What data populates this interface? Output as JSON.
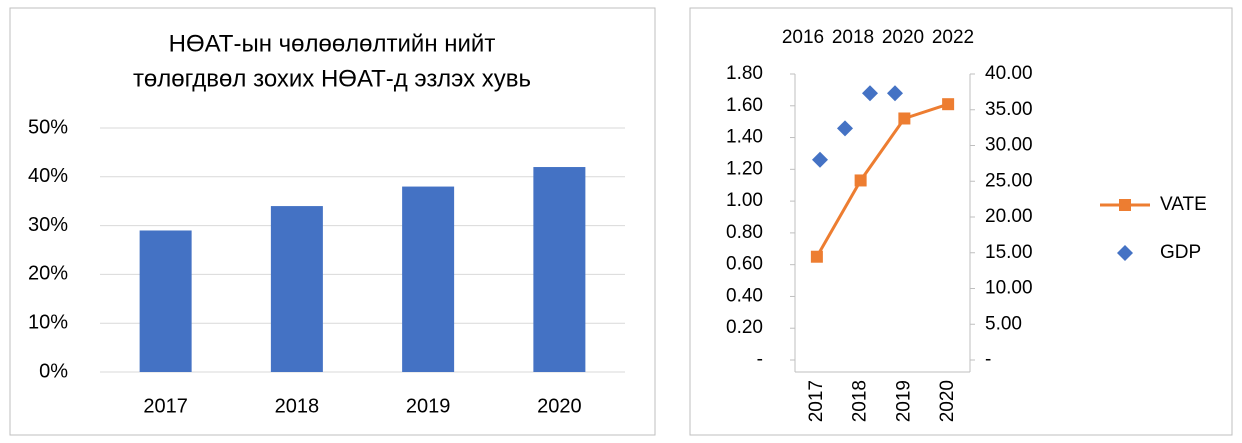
{
  "chart_data": [
    {
      "type": "bar",
      "title": [
        "НӨАТ-ын чөлөөлөлтийн нийт",
        "төлөгдвөл зохих  НӨАТ-д эзлэх хувь"
      ],
      "categories": [
        "2017",
        "2018",
        "2019",
        "2020"
      ],
      "values": [
        29,
        34,
        38,
        42
      ],
      "color": "#4472c4",
      "ylim": [
        0,
        50
      ],
      "yticks": [
        {
          "value": 0,
          "label": "0%"
        },
        {
          "value": 10,
          "label": "10%"
        },
        {
          "value": 20,
          "label": "20%"
        },
        {
          "value": 30,
          "label": "30%"
        },
        {
          "value": 40,
          "label": "40%"
        },
        {
          "value": 50,
          "label": "50%"
        }
      ],
      "grid": true
    },
    {
      "type": "combo",
      "categories": [
        "2017",
        "2018",
        "2019",
        "2020"
      ],
      "ylim": [
        0,
        1.8
      ],
      "yticks": [
        {
          "value": 0,
          "label": "-"
        },
        {
          "value": 0.2,
          "label": "0.20"
        },
        {
          "value": 0.4,
          "label": "0.40"
        },
        {
          "value": 0.6,
          "label": "0.60"
        },
        {
          "value": 0.8,
          "label": "0.80"
        },
        {
          "value": 1.0,
          "label": "1.00"
        },
        {
          "value": 1.2,
          "label": "1.20"
        },
        {
          "value": 1.4,
          "label": "1.40"
        },
        {
          "value": 1.6,
          "label": "1.60"
        },
        {
          "value": 1.8,
          "label": "1.80"
        }
      ],
      "y2lim": [
        0,
        40
      ],
      "y2ticks": [
        {
          "value": 0,
          "label": "-"
        },
        {
          "value": 5,
          "label": "5.00"
        },
        {
          "value": 10,
          "label": "10.00"
        },
        {
          "value": 15,
          "label": "15.00"
        },
        {
          "value": 20,
          "label": "20.00"
        },
        {
          "value": 25,
          "label": "25.00"
        },
        {
          "value": 30,
          "label": "30.00"
        },
        {
          "value": 35,
          "label": "35.00"
        },
        {
          "value": 40,
          "label": "40.00"
        }
      ],
      "x2lim": [
        2016,
        2023
      ],
      "x2ticks": [
        2016,
        2018,
        2020,
        2022
      ],
      "legend": "right",
      "series": [
        {
          "name": "VATE",
          "color": "#ed7d31",
          "marker": "square",
          "values": [
            0.65,
            1.13,
            1.52,
            1.61
          ]
        },
        {
          "name": "GDP",
          "color": "#4472c4",
          "marker": "diamond",
          "axis": "y2",
          "x": [
            2017,
            2018,
            2019,
            2020
          ],
          "values": [
            28,
            32.4,
            37.3,
            37.3
          ]
        }
      ]
    }
  ]
}
